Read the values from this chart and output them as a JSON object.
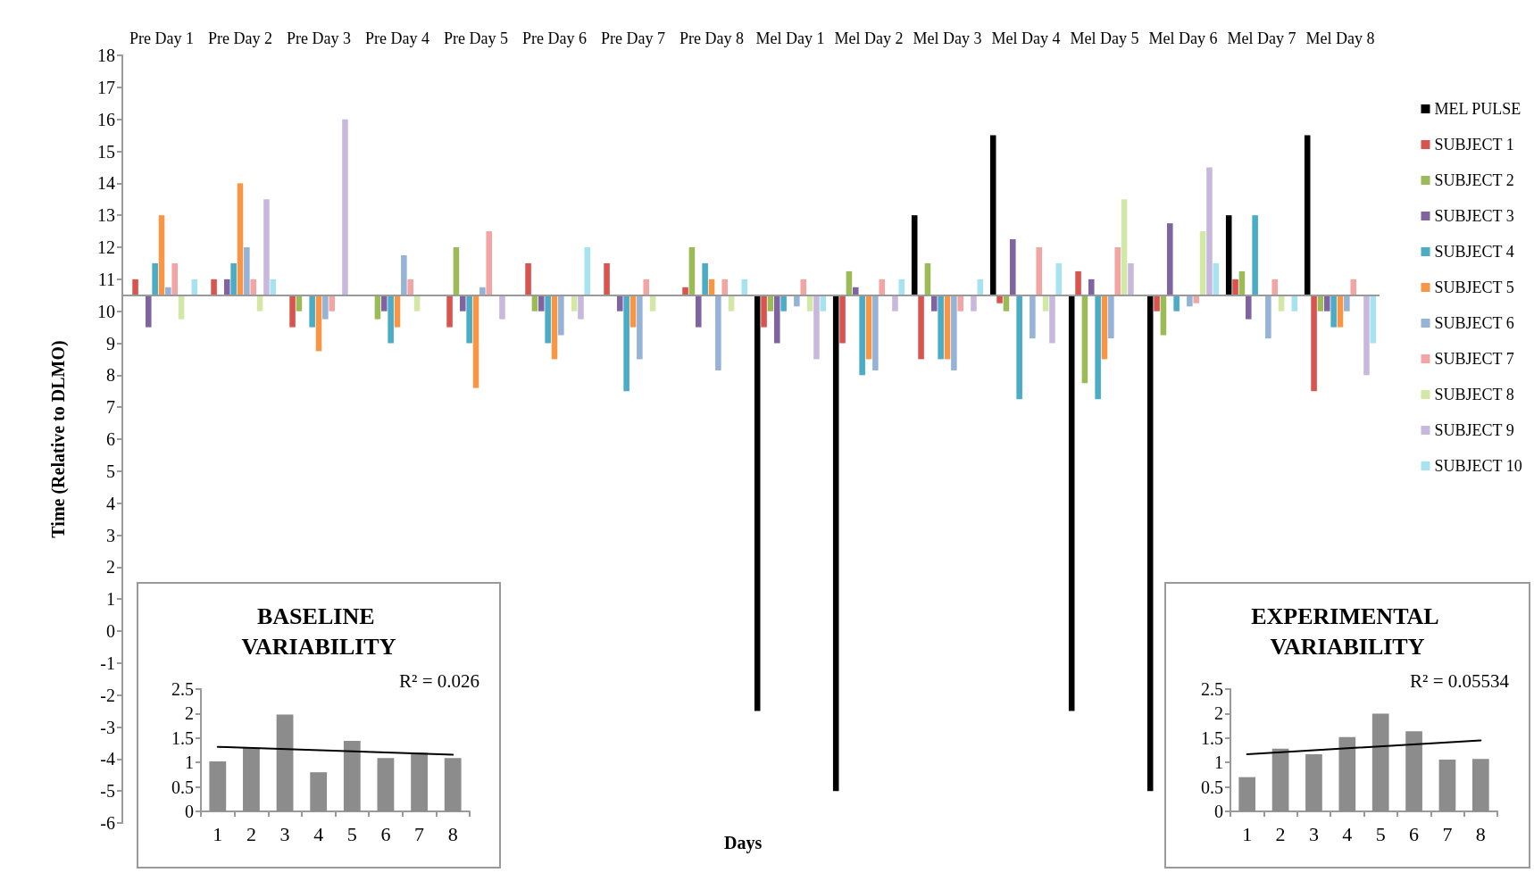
{
  "chart_data": [
    {
      "type": "bar",
      "xlabel": "Days",
      "ylabel": "Time (Relative to DLMO)",
      "categories": [
        "Pre Day 1",
        "Pre Day 2",
        "Pre Day 3",
        "Pre Day 4",
        "Pre Day 5",
        "Pre Day 6",
        "Pre Day 7",
        "Pre Day 8",
        "Mel Day 1",
        "Mel Day 2",
        "Mel Day 3",
        "Mel Day 4",
        "Mel Day 5",
        "Mel Day 6",
        "Mel Day 7",
        "Mel Day 8"
      ],
      "series": [
        {
          "name": "MEL PULSE",
          "color": "#000000",
          "base": [
            null,
            null,
            null,
            null,
            null,
            null,
            null,
            null,
            10.5,
            10.5,
            10.5,
            10.5,
            10.5,
            10.5,
            10.5,
            10.5
          ],
          "values": [
            null,
            null,
            null,
            null,
            null,
            null,
            null,
            null,
            -13,
            -15.5,
            2.5,
            5,
            -13,
            -15.5,
            2.5,
            5
          ]
        },
        {
          "name": "SUBJECT 1",
          "color": "#d9534f",
          "base": [
            10.5,
            10.5,
            10.5,
            null,
            10.5,
            10.5,
            10.5,
            10.5,
            10.5,
            10.5,
            10.5,
            10.5,
            10.5,
            10.5,
            10.5,
            10.5
          ],
          "values": [
            0.5,
            0.5,
            -1,
            null,
            -1,
            1,
            1,
            0.25,
            -1,
            -1.5,
            -2,
            -0.25,
            0.75,
            -0.5,
            0.5,
            -3
          ]
        },
        {
          "name": "SUBJECT 2",
          "color": "#9bbb59",
          "base": [
            null,
            null,
            10.5,
            10.5,
            10.5,
            10.5,
            null,
            10.5,
            10.5,
            10.5,
            10.5,
            10.5,
            10.5,
            10.5,
            10.5,
            10.5
          ],
          "values": [
            null,
            null,
            -0.5,
            -0.75,
            1.5,
            -0.5,
            null,
            1.5,
            -0.5,
            0.75,
            1,
            -0.5,
            -2.75,
            -1.25,
            0.75,
            -0.5
          ]
        },
        {
          "name": "SUBJECT 3",
          "color": "#8064a2",
          "base": [
            10.5,
            10.5,
            null,
            10.5,
            10.5,
            10.5,
            10.5,
            10.5,
            10.5,
            10.5,
            10.5,
            10.5,
            10.5,
            10.5,
            10.5,
            10.5
          ],
          "values": [
            -1,
            0.5,
            null,
            -0.5,
            -0.5,
            -0.5,
            -0.5,
            -1,
            -1.5,
            0.25,
            -0.5,
            1.75,
            0.5,
            2.25,
            -0.75,
            -0.5
          ]
        },
        {
          "name": "SUBJECT 4",
          "color": "#4bacc6",
          "base": [
            10.5,
            10.5,
            10.5,
            10.5,
            10.5,
            10.5,
            10.5,
            10.5,
            10.5,
            10.5,
            10.5,
            10.5,
            10.5,
            10.5,
            10.5,
            10.5
          ],
          "values": [
            1,
            1,
            -1,
            -1.5,
            -1.5,
            -1.5,
            -3,
            1,
            -0.5,
            -2.5,
            -2,
            -3.25,
            -3.25,
            -0.5,
            2.5,
            -1
          ]
        },
        {
          "name": "SUBJECT 5",
          "color": "#f79646",
          "base": [
            10.5,
            10.5,
            10.5,
            10.5,
            10.5,
            10.5,
            10.5,
            10.5,
            null,
            10.5,
            10.5,
            null,
            10.5,
            null,
            null,
            10.5
          ],
          "values": [
            2.5,
            3.5,
            -1.75,
            -1,
            -2.9,
            -2,
            -1,
            0.5,
            null,
            -2,
            -2,
            null,
            -2,
            null,
            null,
            -1
          ]
        },
        {
          "name": "SUBJECT 6",
          "color": "#95b3d7",
          "base": [
            10.5,
            10.5,
            10.5,
            10.5,
            10.5,
            10.5,
            10.5,
            10.5,
            10.5,
            10.5,
            10.5,
            10.5,
            10.5,
            10.5,
            10.5,
            10.5
          ],
          "values": [
            0.25,
            1.5,
            -0.75,
            1.25,
            0.25,
            -1.25,
            -2,
            -2.35,
            -0.35,
            -2.35,
            -2.35,
            -1.35,
            -1.35,
            -0.35,
            -1.35,
            -0.5
          ]
        },
        {
          "name": "SUBJECT 7",
          "color": "#f2a5a3",
          "base": [
            10.5,
            10.5,
            10.5,
            10.5,
            10.5,
            null,
            10.5,
            10.5,
            10.5,
            10.5,
            10.5,
            10.5,
            10.5,
            10.5,
            10.5,
            10.5
          ],
          "values": [
            1,
            0.5,
            -0.5,
            0.5,
            2,
            null,
            0.5,
            0.5,
            0.5,
            0.5,
            -0.5,
            1.5,
            1.5,
            -0.25,
            0.5,
            0.5
          ]
        },
        {
          "name": "SUBJECT 8",
          "color": "#d3e8a6",
          "base": [
            10.5,
            10.5,
            null,
            10.5,
            null,
            10.5,
            10.5,
            10.5,
            10.5,
            null,
            null,
            10.5,
            10.5,
            10.5,
            10.5,
            null
          ],
          "values": [
            -0.75,
            -0.5,
            null,
            -0.5,
            null,
            -0.5,
            -0.5,
            -0.5,
            -0.5,
            null,
            null,
            -0.5,
            3,
            2,
            -0.5,
            null
          ]
        },
        {
          "name": "SUBJECT 9",
          "color": "#c8b8de",
          "base": [
            null,
            10.5,
            10.5,
            null,
            10.5,
            10.5,
            null,
            null,
            10.5,
            10.5,
            10.5,
            10.5,
            10.5,
            10.5,
            null,
            10.5
          ],
          "values": [
            null,
            3,
            5.5,
            null,
            -0.75,
            -0.75,
            null,
            null,
            -2,
            -0.5,
            -0.5,
            -1.5,
            1,
            4,
            null,
            -2.5
          ]
        },
        {
          "name": "SUBJECT 10",
          "color": "#a6e2f0",
          "base": [
            10.5,
            10.5,
            null,
            null,
            null,
            10.5,
            null,
            10.5,
            10.5,
            10.5,
            10.5,
            10.5,
            null,
            10.5,
            10.5,
            10.5
          ],
          "values": [
            0.5,
            0.5,
            null,
            null,
            null,
            1.5,
            null,
            0.5,
            -0.5,
            0.5,
            0.5,
            1,
            null,
            1,
            -0.5,
            -1.5
          ]
        }
      ],
      "ref_lines": [
        {
          "axis": "y",
          "value": 10.5,
          "color": "#9a9a9a"
        }
      ],
      "ylim": [
        -6,
        18
      ],
      "yticks": [
        -6,
        -5,
        -4,
        -3,
        -2,
        -1,
        0,
        1,
        2,
        3,
        4,
        5,
        6,
        7,
        8,
        9,
        10,
        11,
        12,
        13,
        14,
        15,
        16,
        17,
        18
      ],
      "grid": false,
      "legend": "right"
    },
    {
      "type": "bar",
      "title": "BASELINE VARIABILITY",
      "categories": [
        "1",
        "2",
        "3",
        "4",
        "5",
        "6",
        "7",
        "8"
      ],
      "series": [
        {
          "color": "#8c8c8c",
          "values": [
            1.02,
            1.3,
            1.98,
            0.8,
            1.44,
            1.09,
            1.2,
            1.09
          ]
        },
        {
          "type": "line",
          "color": "#000000",
          "marker": "none",
          "x": [
            "1",
            "8"
          ],
          "values": [
            1.32,
            1.16
          ]
        }
      ],
      "ylim": [
        0,
        2.5
      ],
      "yticks": [
        0,
        0.5,
        1,
        1.5,
        2,
        2.5
      ],
      "grid": false,
      "annotations": [
        "R² = 0.026"
      ]
    },
    {
      "type": "bar",
      "title": "EXPERIMENTAL VARIABILITY",
      "categories": [
        "1",
        "2",
        "3",
        "4",
        "5",
        "6",
        "7",
        "8"
      ],
      "series": [
        {
          "color": "#8c8c8c",
          "values": [
            0.7,
            1.28,
            1.17,
            1.52,
            2.0,
            1.64,
            1.06,
            1.07
          ]
        },
        {
          "type": "line",
          "color": "#000000",
          "marker": "none",
          "x": [
            "1",
            "8"
          ],
          "values": [
            1.17,
            1.45
          ]
        }
      ],
      "ylim": [
        0,
        2.5
      ],
      "yticks": [
        0,
        0.5,
        1,
        1.5,
        2,
        2.5
      ],
      "grid": false,
      "annotations": [
        "R² = 0.05534"
      ]
    }
  ]
}
